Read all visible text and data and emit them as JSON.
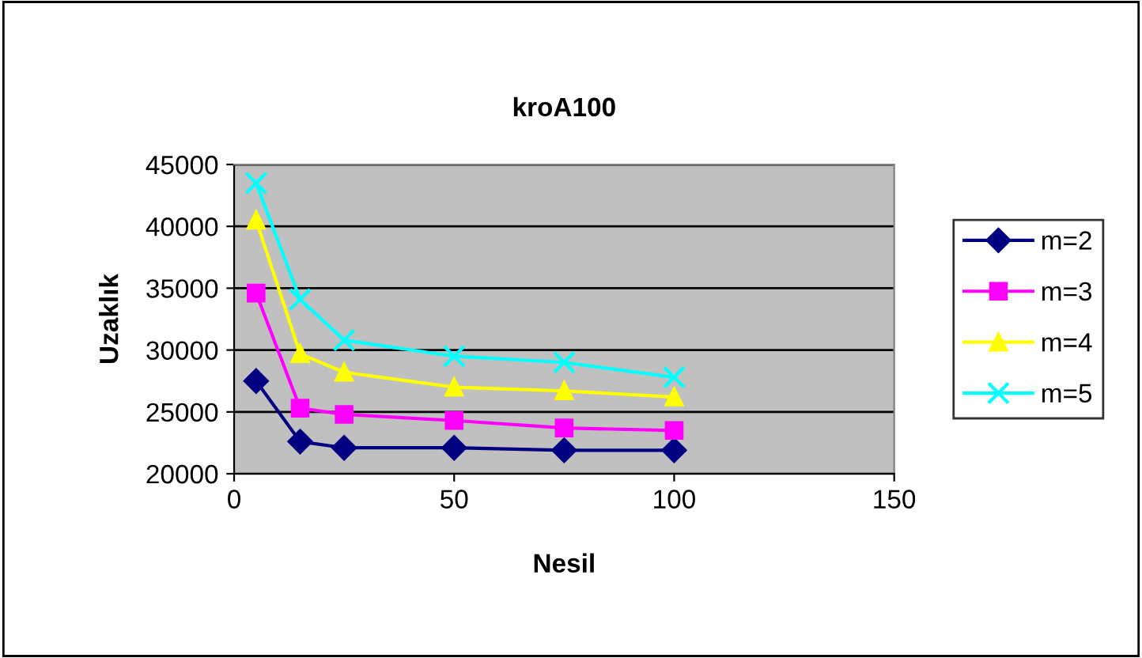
{
  "chart_data": {
    "type": "line",
    "title": "kroA100",
    "xlabel": "Nesil",
    "ylabel": "Uzaklık",
    "x": [
      5,
      15,
      25,
      50,
      75,
      100
    ],
    "series": [
      {
        "name": "m=2",
        "color": "#000080",
        "marker": "diamond",
        "values": [
          27500,
          22600,
          22100,
          22100,
          21900,
          21900
        ]
      },
      {
        "name": "m=3",
        "color": "#ff00ff",
        "marker": "square",
        "values": [
          34600,
          25300,
          24800,
          24300,
          23700,
          23500
        ]
      },
      {
        "name": "m=4",
        "color": "#ffff00",
        "marker": "triangle",
        "values": [
          40500,
          29700,
          28200,
          27000,
          26700,
          26200
        ]
      },
      {
        "name": "m=5",
        "color": "#00ffff",
        "marker": "cross",
        "values": [
          43500,
          34100,
          30800,
          29500,
          29000,
          27800
        ]
      }
    ],
    "xlim": [
      0,
      150
    ],
    "xticks": [
      0,
      50,
      100,
      150
    ],
    "ylim": [
      20000,
      45000
    ],
    "yticks": [
      20000,
      25000,
      30000,
      35000,
      40000,
      45000
    ],
    "grid": "y",
    "legend": "right"
  }
}
